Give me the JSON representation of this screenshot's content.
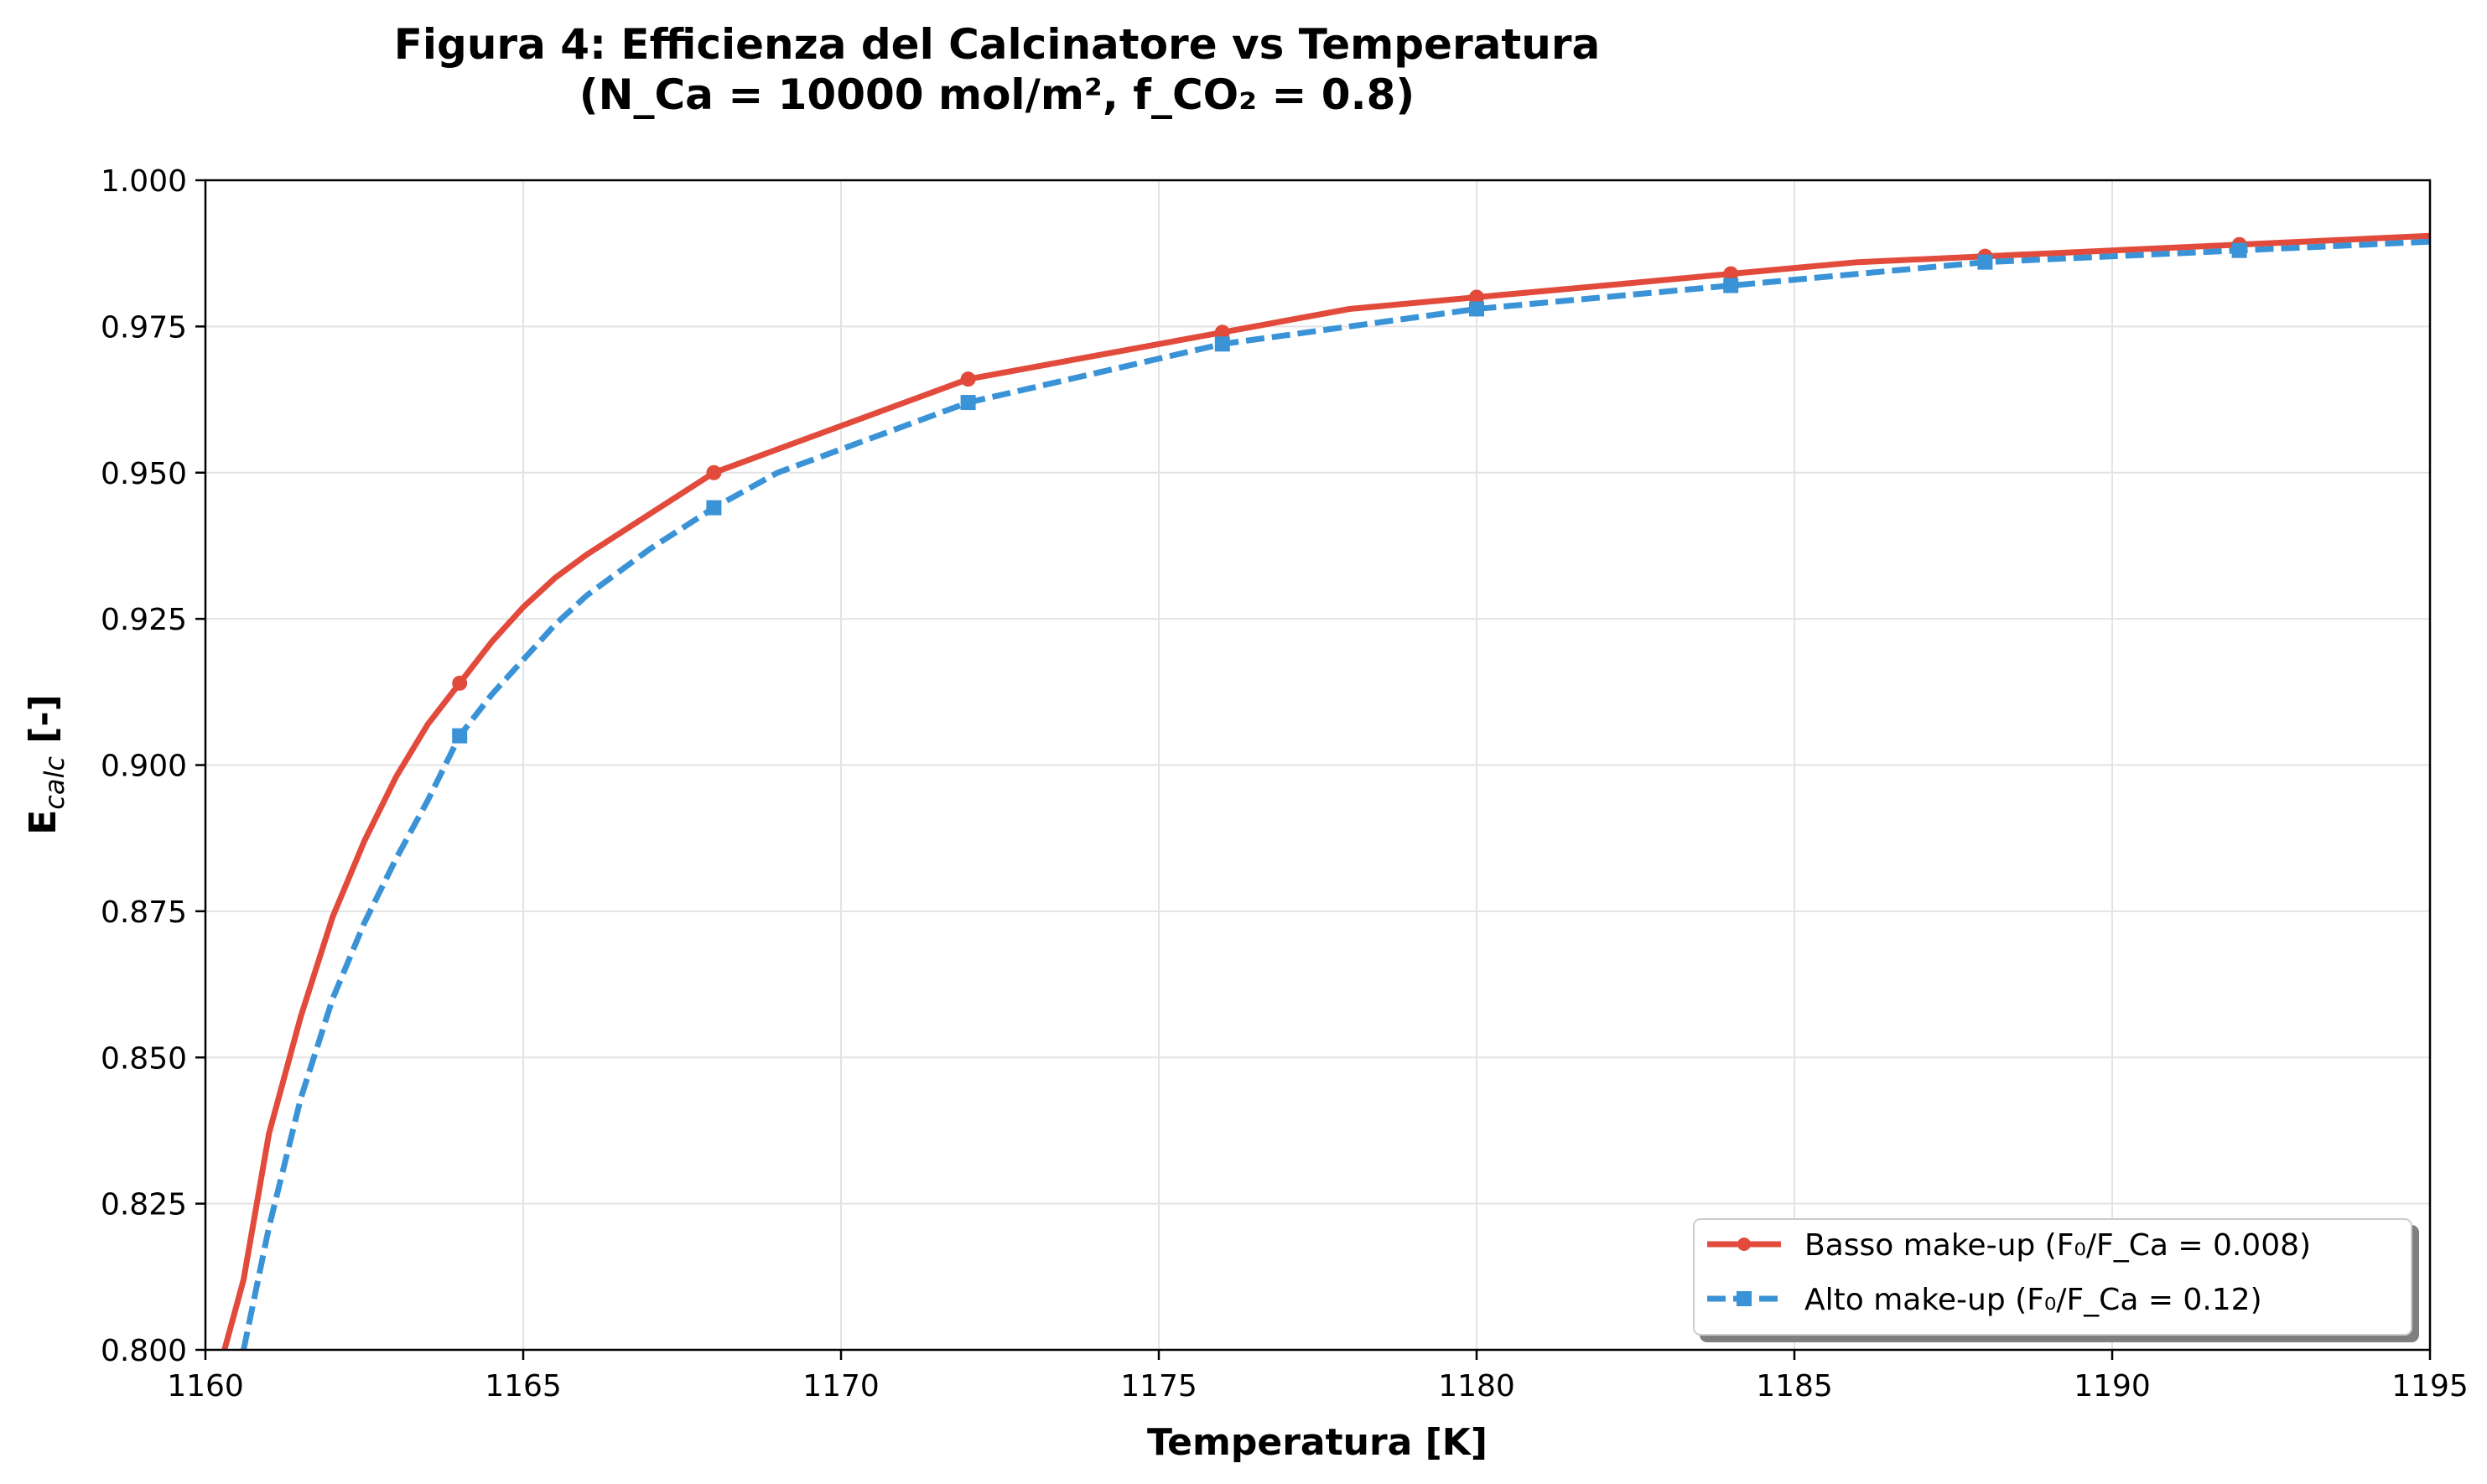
{
  "chart_data": {
    "type": "line",
    "title_line1": "Figura 4: Efficienza del Calcinatore vs Temperatura",
    "title_line2": "(N_Ca = 10000 mol/m², f_CO₂ = 0.8)",
    "xlabel": "Temperatura [K]",
    "ylabel_main": "E",
    "ylabel_sub": "calc",
    "ylabel_suffix": " [-]",
    "xlim": [
      1160,
      1195
    ],
    "ylim": [
      0.8,
      1.0
    ],
    "xticks": [
      "1160",
      "1165",
      "1170",
      "1175",
      "1180",
      "1185",
      "1190",
      "1195"
    ],
    "yticks": [
      "0.800",
      "0.825",
      "0.850",
      "0.875",
      "0.900",
      "0.925",
      "0.950",
      "0.975",
      "1.000"
    ],
    "grid": true,
    "legend_position": "lower-right",
    "series": [
      {
        "name": "Basso make-up (F₀/F_Ca = 0.008)",
        "color": "#e24a3b",
        "style": "solid",
        "marker": "circle",
        "x": [
          1160.3,
          1160.6,
          1161.0,
          1161.5,
          1162.0,
          1162.5,
          1163.0,
          1163.5,
          1164.0,
          1164.5,
          1165.0,
          1165.5,
          1166.0,
          1167.0,
          1168.0,
          1169.0,
          1170.0,
          1171.0,
          1172.0,
          1174.0,
          1176.0,
          1178.0,
          1180.0,
          1182.0,
          1184.0,
          1186.0,
          1188.0,
          1190.0,
          1192.0,
          1194.0,
          1195.0
        ],
        "y": [
          0.8,
          0.812,
          0.837,
          0.857,
          0.874,
          0.887,
          0.898,
          0.907,
          0.914,
          0.921,
          0.927,
          0.932,
          0.936,
          0.943,
          0.95,
          0.954,
          0.958,
          0.962,
          0.966,
          0.97,
          0.974,
          0.978,
          0.98,
          0.982,
          0.984,
          0.986,
          0.987,
          0.988,
          0.989,
          0.99,
          0.9905
        ],
        "marker_x": [
          1164,
          1168,
          1172,
          1176,
          1180,
          1184,
          1188,
          1192
        ],
        "marker_y": [
          0.914,
          0.95,
          0.966,
          0.974,
          0.98,
          0.984,
          0.987,
          0.989
        ]
      },
      {
        "name": "Alto make-up (F₀/F_Ca = 0.12)",
        "color": "#3a93d6",
        "style": "dashed",
        "marker": "square",
        "x": [
          1160.6,
          1161.0,
          1161.5,
          1162.0,
          1162.5,
          1163.0,
          1163.5,
          1164.0,
          1164.5,
          1165.0,
          1165.5,
          1166.0,
          1167.0,
          1168.0,
          1169.0,
          1170.0,
          1171.0,
          1172.0,
          1174.0,
          1176.0,
          1178.0,
          1180.0,
          1182.0,
          1184.0,
          1186.0,
          1188.0,
          1190.0,
          1192.0,
          1194.0,
          1195.0
        ],
        "y": [
          0.8,
          0.821,
          0.843,
          0.86,
          0.873,
          0.884,
          0.894,
          0.905,
          0.912,
          0.918,
          0.924,
          0.929,
          0.937,
          0.944,
          0.95,
          0.954,
          0.958,
          0.962,
          0.967,
          0.972,
          0.975,
          0.978,
          0.98,
          0.982,
          0.984,
          0.986,
          0.987,
          0.988,
          0.989,
          0.9895
        ],
        "marker_x": [
          1164,
          1168,
          1172,
          1176,
          1180,
          1184,
          1188,
          1192
        ],
        "marker_y": [
          0.905,
          0.944,
          0.962,
          0.972,
          0.978,
          0.982,
          0.986,
          0.988
        ]
      }
    ]
  }
}
